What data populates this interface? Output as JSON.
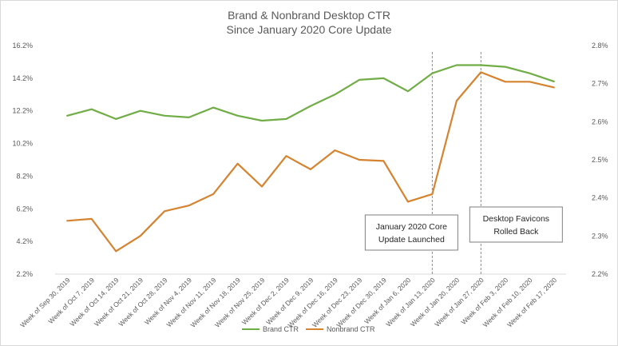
{
  "chart_data": {
    "type": "line",
    "title": "Brand & Nonbrand Desktop CTR",
    "subtitle": "Since January 2020 Core Update",
    "categories": [
      "Week of Sep 30, 2019",
      "Week of Oct 7, 2019",
      "Week of Oct 14, 2019",
      "Week of Oct 21, 2019",
      "Week of Oct 28, 2019",
      "Week of Nov 4, 2019",
      "Week of Nov 11, 2019",
      "Week of Nov 18, 2019",
      "Week of Nov 25, 2019",
      "Week of Dec 2, 2019",
      "Week of Dec 9, 2019",
      "Week of Dec 16, 2019",
      "Week of Dec 23, 2019",
      "Week of Dec 30, 2019",
      "Week of Jan 6, 2020",
      "Week of Jan 13, 2020",
      "Week of Jan 20, 2020",
      "Week of Jan 27, 2020",
      "Week of Feb 3, 2020",
      "Week of Feb 10, 2020",
      "Week of Feb 17, 2020"
    ],
    "y_left": {
      "min": 2.2,
      "max": 16.2,
      "ticks": [
        "2.2%",
        "4.2%",
        "6.2%",
        "8.2%",
        "10.2%",
        "12.2%",
        "14.2%",
        "16.2%"
      ]
    },
    "y_right": {
      "min": 2.2,
      "max": 2.8,
      "ticks": [
        "2.2%",
        "2.3%",
        "2.4%",
        "2.5%",
        "2.6%",
        "2.7%",
        "2.8%"
      ]
    },
    "series": [
      {
        "name": "Brand CTR",
        "axis": "left",
        "color": "#70ad47",
        "values": [
          11.9,
          12.3,
          11.7,
          12.2,
          11.9,
          11.8,
          12.4,
          11.9,
          11.6,
          11.7,
          12.5,
          13.2,
          14.1,
          14.2,
          13.4,
          14.5,
          15.0,
          15.0,
          14.9,
          14.5,
          14.0
        ]
      },
      {
        "name": "Nonbrand CTR",
        "axis": "right",
        "color": "#d5832f",
        "values": [
          2.34,
          2.345,
          2.26,
          2.3,
          2.365,
          2.38,
          2.41,
          2.49,
          2.43,
          2.51,
          2.475,
          2.525,
          2.5,
          2.497,
          2.39,
          2.41,
          2.655,
          2.73,
          2.705,
          2.705,
          2.69
        ]
      }
    ],
    "annotations": [
      {
        "at": "Week of Jan 13, 2020",
        "line1": "January 2020 Core",
        "line2": "Update Launched"
      },
      {
        "at": "Week of Jan 27, 2020",
        "line1": "Desktop Favicons",
        "line2": "Rolled Back"
      }
    ],
    "legend": {
      "placement": "bottom"
    },
    "grid": false
  }
}
